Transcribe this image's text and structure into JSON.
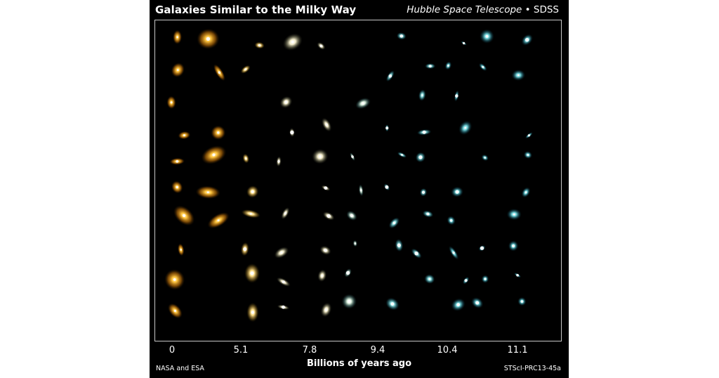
{
  "image": {
    "title": "Galaxies Similar to the Milky Way",
    "credit_observatory_1": "Hubble Space Telescope",
    "credit_separator": " • ",
    "credit_observatory_2": "SDSS",
    "x_axis_label": "Billions of years ago",
    "x_ticks": [
      "0",
      "5.1",
      "7.8",
      "9.4",
      "10.4",
      "11.1"
    ],
    "credit_left": "NASA and ESA",
    "credit_right": "STScI-PRC13-45a"
  },
  "colors": {
    "background": "#000000",
    "frame_border": "#c8c8c8",
    "text": "#ffffff",
    "galaxy_palette": [
      "#ffb020",
      "#ffcf58",
      "#f5e6a8",
      "#d9e8d8",
      "#8fd4d4",
      "#5fc3cf"
    ]
  }
}
